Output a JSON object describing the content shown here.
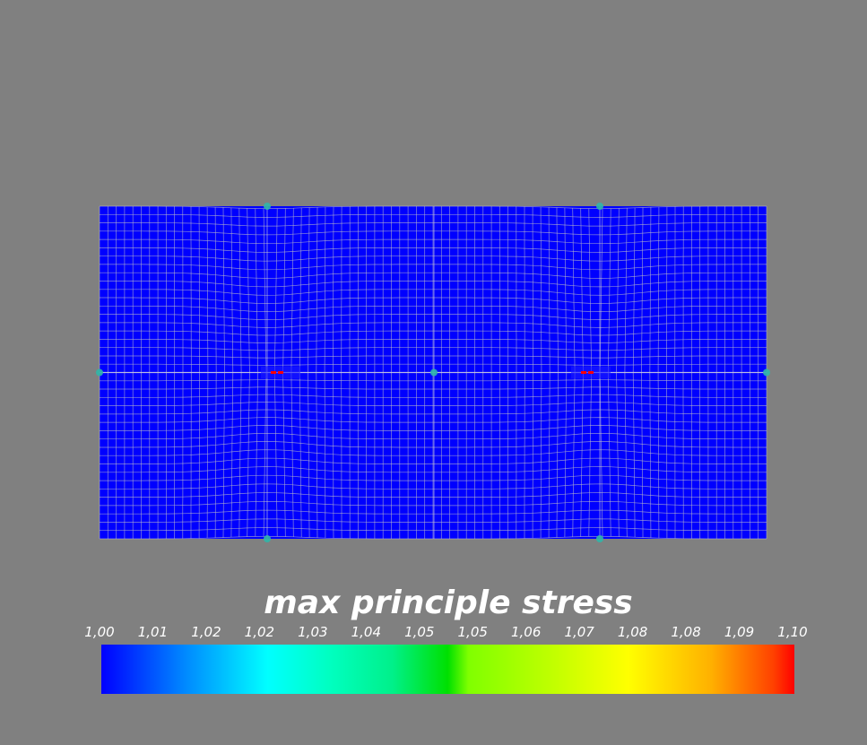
{
  "legend": {
    "title": "max principle stress",
    "ticks": [
      "1,00",
      "1,01",
      "1,02",
      "1,02",
      "1,03",
      "1,04",
      "1,05",
      "1,05",
      "1,06",
      "1,07",
      "1,08",
      "1,08",
      "1,09",
      "1,10"
    ],
    "min": 1.0,
    "max": 1.1,
    "colormap": [
      "#0000ff",
      "#00ffff",
      "#00e000",
      "#ffff00",
      "#ff0000"
    ]
  },
  "colors": {
    "background": "#808080",
    "mesh_fill": "#0000ff",
    "mesh_lines": "#b8b8c8",
    "hotspot_node": "#2fb6a8",
    "crack_tip": "#ff0000"
  }
}
